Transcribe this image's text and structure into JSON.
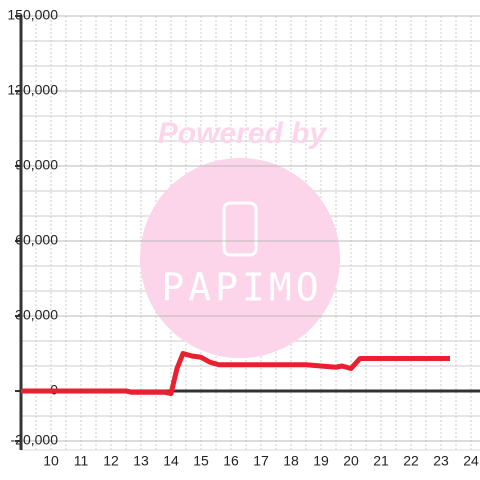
{
  "chart_data": {
    "type": "line",
    "x": [
      9,
      12.5,
      12.7,
      13.8,
      14.0,
      14.2,
      14.4,
      14.7,
      15.0,
      15.3,
      15.6,
      16.0,
      18.5,
      19.0,
      19.5,
      19.7,
      20.0,
      20.3,
      23.3
    ],
    "series": [
      {
        "color": "#e8202f",
        "values": [
          0,
          0,
          -500,
          -500,
          -1000,
          9000,
          15000,
          14000,
          13500,
          11500,
          10500,
          10500,
          10500,
          10000,
          9500,
          10000,
          9000,
          13000,
          13000
        ]
      }
    ],
    "xlim": [
      9,
      24.3
    ],
    "xticks": [
      10,
      11,
      12,
      13,
      14,
      15,
      16,
      17,
      18,
      19,
      20,
      21,
      22,
      23,
      24
    ],
    "xgrid": [
      9.5,
      10,
      10.5,
      11,
      11.5,
      12,
      12.5,
      13,
      13.5,
      14,
      14.5,
      15,
      15.5,
      16,
      16.5,
      17,
      17.5,
      18,
      18.5,
      19,
      19.5,
      20,
      20.5,
      21,
      21.5,
      22,
      22.5,
      23,
      23.5,
      24
    ],
    "ylim": [
      -20000,
      150000
    ],
    "yticks": [
      {
        "value": -20000,
        "label": "-20,000"
      },
      0,
      {
        "value": 30000,
        "label": "30,000"
      },
      {
        "value": 60000,
        "label": "60,000"
      },
      {
        "value": 90000,
        "label": "90,000"
      },
      {
        "value": 120000,
        "label": "120,000"
      },
      {
        "value": 150000,
        "label": "150,000"
      }
    ],
    "ygrid": [
      -10000,
      10000,
      20000,
      40000,
      50000,
      70000,
      80000,
      100000,
      110000,
      130000,
      140000
    ],
    "grid": true,
    "watermark": {
      "line1": "Powered by",
      "line2": "PAPIMO"
    }
  }
}
